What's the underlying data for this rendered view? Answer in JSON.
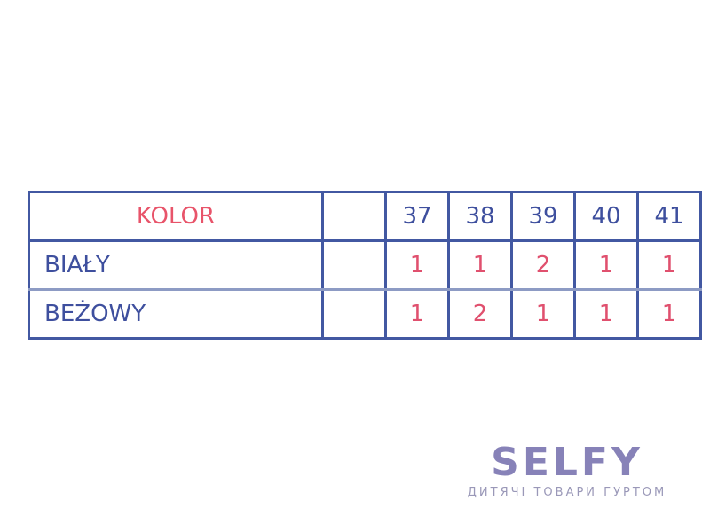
{
  "table": {
    "header": {
      "label": "KOLOR",
      "blank": "",
      "sizes": [
        "37",
        "38",
        "39",
        "40",
        "41"
      ]
    },
    "rows": [
      {
        "label": "BIAŁY",
        "blank": "",
        "values": [
          "1",
          "1",
          "2",
          "1",
          "1"
        ]
      },
      {
        "label": "BEŻOWY",
        "blank": "",
        "values": [
          "1",
          "2",
          "1",
          "1",
          "1"
        ]
      }
    ]
  },
  "logo": {
    "name": "SELFY",
    "tagline": "ДИТЯЧІ ТОВАРИ ГУРТОМ"
  },
  "colors": {
    "border": "#4258a2",
    "accent": "#e0506e",
    "text": "#3e4f9e",
    "logo": "#8782b8"
  }
}
